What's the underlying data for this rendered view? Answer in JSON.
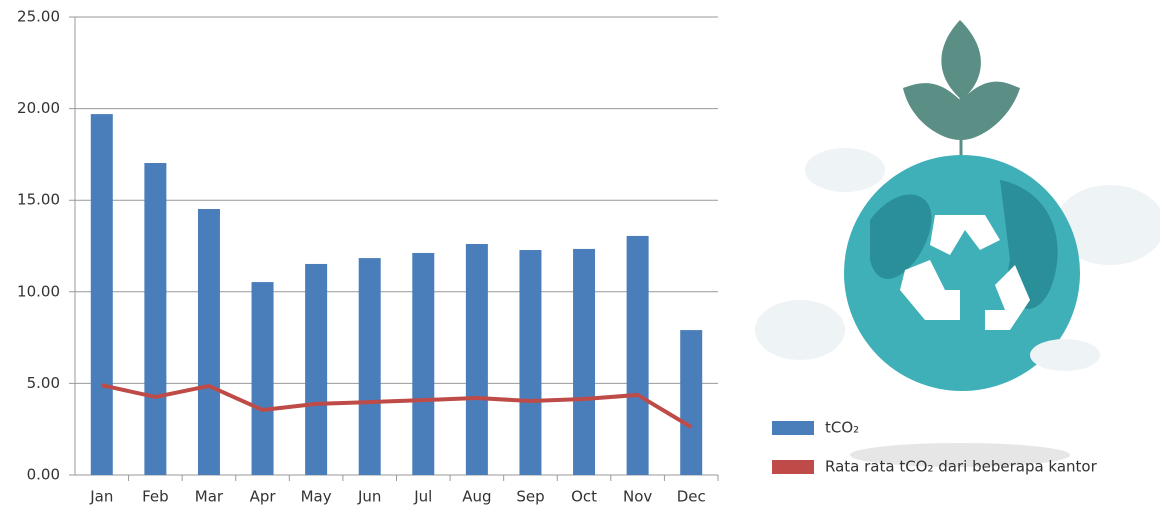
{
  "chart_data": {
    "type": "bar-line",
    "categories": [
      "Jan",
      "Feb",
      "Mar",
      "Apr",
      "May",
      "Jun",
      "Jul",
      "Aug",
      "Sep",
      "Oct",
      "Nov",
      "Dec"
    ],
    "series": [
      {
        "name": "tCO₂",
        "type": "bar",
        "color": "#4a7ebb",
        "values": [
          19.7,
          17.03,
          14.52,
          10.53,
          11.52,
          11.84,
          12.12,
          12.61,
          12.28,
          12.34,
          13.05,
          7.91
        ]
      },
      {
        "name": "Rata rata tCO₂ dari beberapa kantor",
        "type": "line",
        "color": "#be4b48",
        "values": [
          4.9,
          4.26,
          4.86,
          3.55,
          3.88,
          3.98,
          4.09,
          4.2,
          4.04,
          4.15,
          4.37,
          2.62
        ]
      }
    ],
    "ylim": [
      0,
      25
    ],
    "yticks": [
      {
        "value": 0,
        "label": "0.00"
      },
      {
        "value": 5,
        "label": "5.00"
      },
      {
        "value": 10,
        "label": "10.00"
      },
      {
        "value": 15,
        "label": "15.00"
      },
      {
        "value": 20,
        "label": "20.00"
      },
      {
        "value": 25,
        "label": "25.00"
      }
    ],
    "grid": true
  }
}
